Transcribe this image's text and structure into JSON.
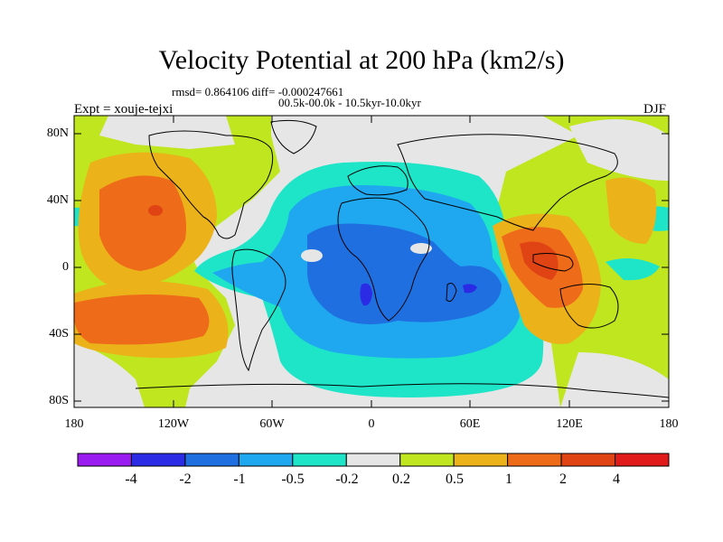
{
  "header": {
    "title": "Velocity Potential at 200 hPa (km2/s)",
    "stats": "rmsd= 0.864106 diff= -0.000247661",
    "period": "00.5k-00.0k - 10.5kyr-10.0kyr",
    "expt": "Expt = xouje-tejxi",
    "season": "DJF"
  },
  "axes": {
    "lat_labels": [
      "80N",
      "40N",
      "0",
      "40S",
      "80S"
    ],
    "lon_labels": [
      "180",
      "120W",
      "60W",
      "0",
      "60E",
      "120E",
      "180"
    ]
  },
  "colorbar": {
    "labels": [
      "-4",
      "-2",
      "-1",
      "-0.5",
      "-0.2",
      "0.2",
      "0.5",
      "1",
      "2",
      "4"
    ],
    "colors": [
      "#9b1cf0",
      "#2b2be6",
      "#1f6fe0",
      "#1fa8ef",
      "#1fe5c8",
      "#e6e6e6",
      "#bfe61f",
      "#ebb21a",
      "#ee6b1a",
      "#e14414",
      "#e11a1a"
    ]
  },
  "palette": {
    "land_outline": "#000000",
    "neutral": "#e6e6e6"
  }
}
